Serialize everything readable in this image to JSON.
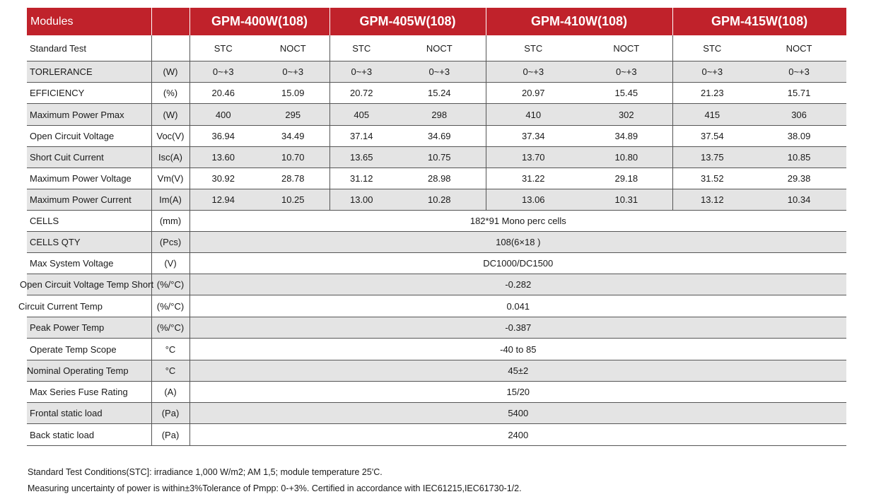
{
  "header": {
    "modules_label": "Modules",
    "models": [
      "GPM-400W(108)",
      "GPM-405W(108)",
      "GPM-410W(108)",
      "GPM-415W(108)"
    ]
  },
  "rows": [
    {
      "label": "Standard Test",
      "unit": "",
      "values": [
        "STC",
        "NOCT",
        "STC",
        "NOCT",
        "STC",
        "NOCT",
        "STC",
        "NOCT"
      ]
    },
    {
      "label": "TORLERANCE",
      "unit": "(W)",
      "values": [
        "0~+3",
        "0~+3",
        "0~+3",
        "0~+3",
        "0~+3",
        "0~+3",
        "0~+3",
        "0~+3"
      ]
    },
    {
      "label": "EFFICIENCY",
      "unit": "(%)",
      "values": [
        "20.46",
        "15.09",
        "20.72",
        "15.24",
        "20.97",
        "15.45",
        "21.23",
        "15.71"
      ]
    },
    {
      "label": "Maximum Power Pmax",
      "unit": "(W)",
      "values": [
        "400",
        "295",
        "405",
        "298",
        "410",
        "302",
        "415",
        "306"
      ]
    },
    {
      "label": "Open Circuit Voltage",
      "unit": "Voc(V)",
      "values": [
        "36.94",
        "34.49",
        "37.14",
        "34.69",
        "37.34",
        "34.89",
        "37.54",
        "38.09"
      ]
    },
    {
      "label": "Short Cuit Current",
      "unit": "Isc(A)",
      "values": [
        "13.60",
        "10.70",
        "13.65",
        "10.75",
        "13.70",
        "10.80",
        "13.75",
        "10.85"
      ]
    },
    {
      "label": "Maximum Power Voltage",
      "unit": "Vm(V)",
      "values": [
        "30.92",
        "28.78",
        "31.12",
        "28.98",
        "31.22",
        "29.18",
        "31.52",
        "29.38"
      ]
    },
    {
      "label": "Maximum Power Current",
      "unit": "Im(A)",
      "values": [
        "12.94",
        "10.25",
        "13.00",
        "10.28",
        "13.06",
        "10.31",
        "13.12",
        "10.34"
      ]
    }
  ],
  "common_rows": [
    {
      "label": "CELLS",
      "unit": "(mm)",
      "value": "182*91  Mono perc cells"
    },
    {
      "label": "CELLS QTY",
      "unit": "(Pcs)",
      "value": "108(6×18 )"
    },
    {
      "label": "Max System Voltage",
      "unit": "(V)",
      "value": "DC1000/DC1500"
    },
    {
      "label": "Open Circuit Voltage Temp Short",
      "unit": "(%/°C)",
      "value": "-0.282"
    },
    {
      "label": "Circuit Current Temp",
      "unit": "(%/°C)",
      "value": "0.041"
    },
    {
      "label": "Peak Power Temp",
      "unit": "(%/°C)",
      "value": "-0.387"
    },
    {
      "label": "Operate Temp Scope",
      "unit": "°C",
      "value": "-40 to 85"
    },
    {
      "label": "Nominal Operating Temp",
      "unit": "°C",
      "value": "45±2"
    },
    {
      "label": "Max Series Fuse Rating",
      "unit": "(A)",
      "value": "15/20"
    },
    {
      "label": "Frontal static load",
      "unit": "(Pa)",
      "value": "5400"
    },
    {
      "label": "Back static load",
      "unit": "(Pa)",
      "value": "2400"
    }
  ],
  "notes": [
    "Standard Test Conditions(STC]: irradiance 1,000 W/m2; AM 1,5; module temperature 25'C.",
    "Measuring uncertainty of power is within±3%Tolerance of Pmpp: 0-+3%. Certified in accordance with IEC61215,IEC61730-1/2."
  ],
  "colors": {
    "header_bg": "#c0222b",
    "row_shade": "#e4e4e4",
    "header_text": "#ffffff"
  }
}
